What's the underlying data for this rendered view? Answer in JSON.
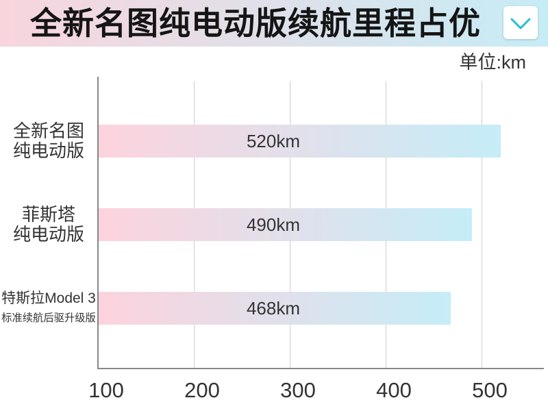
{
  "banner": {
    "gradient": [
      "#f8d5dd",
      "#c6ecf6"
    ],
    "expand_icon": "chevron-down-icon",
    "expand_icon_color": "#22bfd6"
  },
  "chart_data": {
    "type": "bar",
    "horizontal": true,
    "title": "全新名图纯电动版续航里程占优",
    "unit_label": "单位:km",
    "categories": [
      [
        "全新名图",
        "纯电动版"
      ],
      [
        "菲斯塔",
        "纯电动版"
      ],
      [
        "特斯拉Model 3",
        "标准续航后驱升级版"
      ]
    ],
    "values": [
      520,
      490,
      468
    ],
    "data_labels": [
      "520km",
      "490km",
      "468km"
    ],
    "x_ticks": [
      100,
      200,
      300,
      400,
      500
    ],
    "xlim": [
      100,
      565
    ],
    "grid": true,
    "bar_gradient": [
      "#fdd3dd",
      "#c5edf8"
    ]
  }
}
